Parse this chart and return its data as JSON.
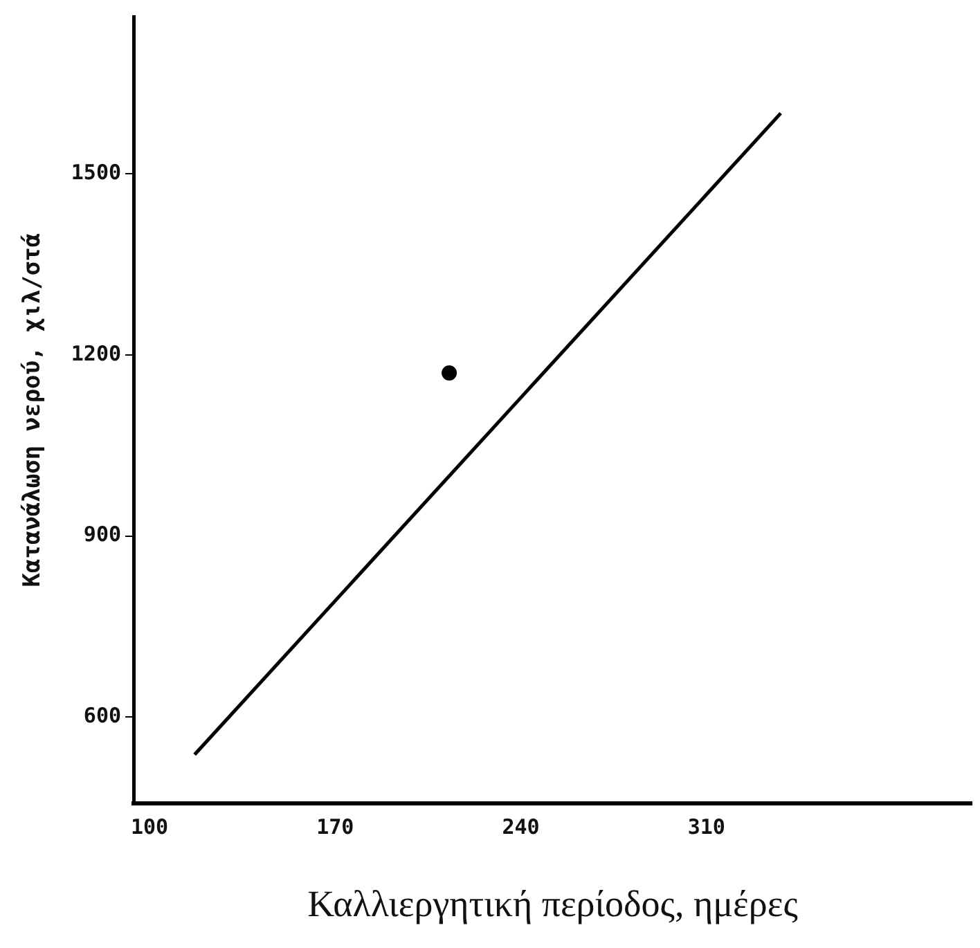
{
  "chart_data": {
    "type": "scatter",
    "xlabel": "Καλλιεργητική περίοδος, ημέρες",
    "ylabel": "Κατανάλωση νερού, χιλ/στά",
    "xlim": [
      94,
      410
    ],
    "ylim": [
      457,
      1760
    ],
    "xticks": [
      100,
      170,
      240,
      310
    ],
    "yticks": [
      600,
      900,
      1200,
      1500
    ],
    "grid": false,
    "legend": false,
    "marker": "circle",
    "series": [
      {
        "type": "line",
        "color": "#000000",
        "x": [
          117,
          338
        ],
        "values": [
          538,
          1600
        ],
        "marker": "none"
      },
      {
        "color": "#000000",
        "x": [
          213
        ],
        "values": [
          1170
        ]
      }
    ]
  }
}
